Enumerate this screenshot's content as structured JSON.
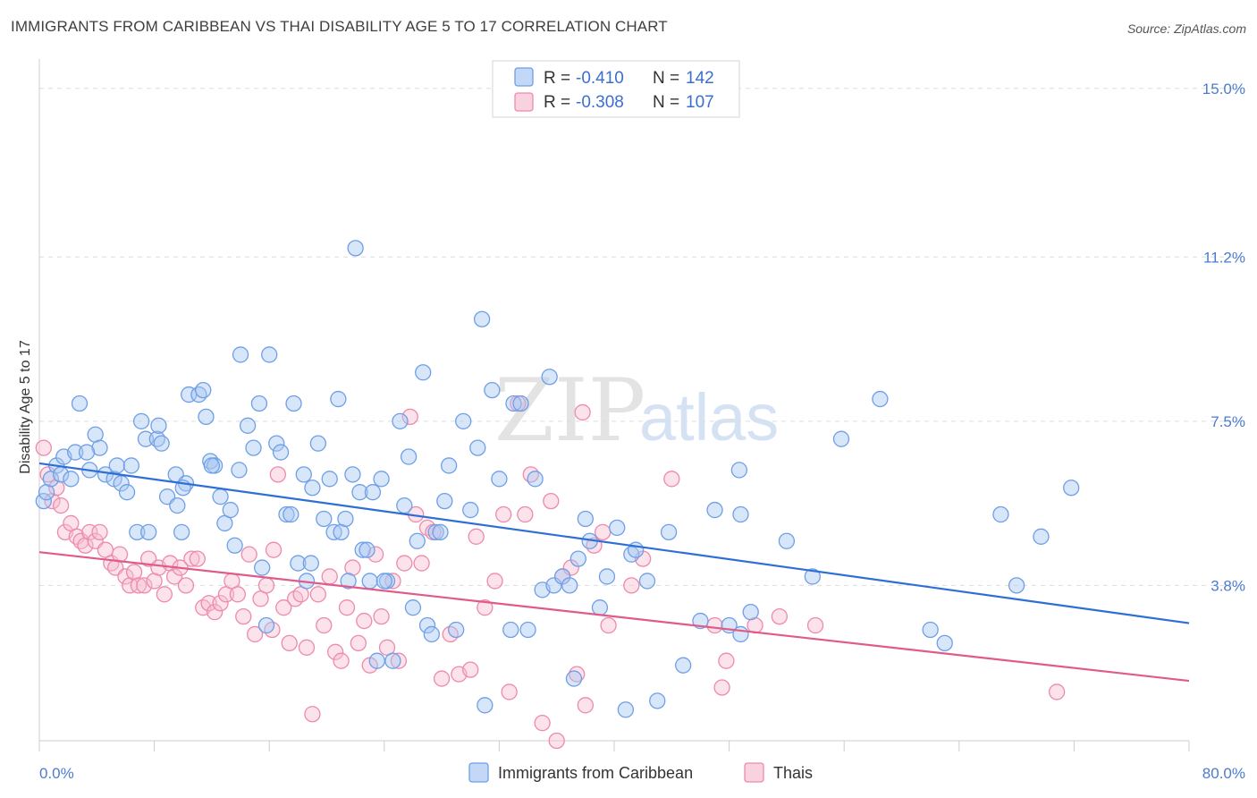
{
  "header": {
    "title": "IMMIGRANTS FROM CARIBBEAN VS THAI DISABILITY AGE 5 TO 17 CORRELATION CHART",
    "source": "Source: ZipAtlas.com"
  },
  "watermark": {
    "zip": "ZIP",
    "atlas": "atlas"
  },
  "colors": {
    "blue": "#6f9fe6",
    "blue_fill": "#a9c7f2",
    "blue_line": "#2e6fd6",
    "pink": "#ee8aaa",
    "pink_fill": "#f6bfd2",
    "pink_line": "#e05a8a",
    "grid": "#dddddd",
    "tick_text": "#4b7bd0"
  },
  "legend": {
    "rows": [
      {
        "r_label": "R =",
        "r_value": "-0.410",
        "n_label": "N =",
        "n_value": "142"
      },
      {
        "r_label": "R =",
        "r_value": "-0.308",
        "n_label": "N =",
        "n_value": "107"
      }
    ]
  },
  "chart_data": {
    "type": "scatter",
    "title": "IMMIGRANTS FROM CARIBBEAN VS THAI DISABILITY AGE 5 TO 17 CORRELATION CHART",
    "xlabel": "",
    "ylabel": "Disability Age 5 to 17",
    "xlim": [
      0,
      80
    ],
    "ylim": [
      0.3,
      15.5
    ],
    "x_tick_labels": [
      "0.0%",
      "80.0%"
    ],
    "y_ticks": [
      3.8,
      7.5,
      11.2,
      15.0
    ],
    "y_tick_labels": [
      "3.8%",
      "7.5%",
      "11.2%",
      "15.0%"
    ],
    "grid": true,
    "legend_position": "top-center",
    "series": [
      {
        "name": "Immigrants from Caribbean",
        "color": "#6f9fe6",
        "trend": {
          "x": [
            0,
            80
          ],
          "y": [
            6.55,
            2.95
          ]
        },
        "points": [
          [
            0.3,
            5.7
          ],
          [
            0.5,
            5.9
          ],
          [
            0.8,
            6.2
          ],
          [
            1.2,
            6.5
          ],
          [
            1.5,
            6.3
          ],
          [
            1.7,
            6.7
          ],
          [
            2.5,
            6.8
          ],
          [
            2.8,
            7.9
          ],
          [
            3.5,
            6.4
          ],
          [
            3.9,
            7.2
          ],
          [
            4.2,
            6.9
          ],
          [
            4.6,
            6.3
          ],
          [
            5.2,
            6.2
          ],
          [
            5.4,
            6.5
          ],
          [
            5.7,
            6.1
          ],
          [
            6.1,
            5.9
          ],
          [
            6.4,
            6.5
          ],
          [
            6.8,
            5.0
          ],
          [
            7.1,
            7.5
          ],
          [
            7.4,
            7.1
          ],
          [
            7.6,
            5.0
          ],
          [
            8.2,
            7.1
          ],
          [
            8.3,
            7.4
          ],
          [
            8.5,
            7.0
          ],
          [
            8.9,
            5.8
          ],
          [
            9.5,
            6.3
          ],
          [
            9.6,
            5.6
          ],
          [
            9.9,
            5.0
          ],
          [
            10.2,
            6.1
          ],
          [
            10.4,
            8.1
          ],
          [
            11.1,
            8.1
          ],
          [
            11.4,
            8.2
          ],
          [
            11.6,
            7.6
          ],
          [
            11.9,
            6.6
          ],
          [
            12.2,
            6.5
          ],
          [
            12.6,
            5.8
          ],
          [
            12.9,
            5.2
          ],
          [
            13.3,
            5.5
          ],
          [
            13.6,
            4.7
          ],
          [
            13.9,
            6.4
          ],
          [
            14.0,
            9.0
          ],
          [
            14.5,
            7.4
          ],
          [
            14.9,
            6.9
          ],
          [
            15.3,
            7.9
          ],
          [
            15.5,
            4.2
          ],
          [
            15.8,
            2.9
          ],
          [
            16.0,
            9.0
          ],
          [
            16.5,
            7.0
          ],
          [
            16.8,
            6.8
          ],
          [
            17.2,
            5.4
          ],
          [
            17.5,
            5.4
          ],
          [
            17.7,
            7.9
          ],
          [
            18.0,
            4.3
          ],
          [
            18.4,
            6.3
          ],
          [
            18.6,
            3.9
          ],
          [
            18.9,
            4.3
          ],
          [
            19.0,
            6.0
          ],
          [
            19.4,
            7.0
          ],
          [
            19.8,
            5.3
          ],
          [
            20.2,
            6.2
          ],
          [
            20.5,
            5.0
          ],
          [
            20.8,
            8.0
          ],
          [
            21.0,
            5.0
          ],
          [
            21.3,
            5.3
          ],
          [
            21.5,
            3.9
          ],
          [
            21.8,
            6.3
          ],
          [
            22.0,
            11.4
          ],
          [
            22.3,
            5.9
          ],
          [
            22.5,
            4.6
          ],
          [
            22.8,
            4.6
          ],
          [
            23.0,
            3.9
          ],
          [
            23.2,
            5.9
          ],
          [
            23.5,
            2.1
          ],
          [
            23.8,
            6.2
          ],
          [
            24.2,
            3.9
          ],
          [
            24.6,
            2.1
          ],
          [
            25.1,
            7.5
          ],
          [
            25.4,
            5.6
          ],
          [
            25.7,
            6.7
          ],
          [
            26.0,
            3.3
          ],
          [
            26.3,
            4.8
          ],
          [
            26.7,
            8.6
          ],
          [
            27.0,
            2.9
          ],
          [
            27.3,
            2.7
          ],
          [
            27.6,
            5.0
          ],
          [
            27.9,
            5.0
          ],
          [
            28.2,
            5.7
          ],
          [
            28.5,
            6.5
          ],
          [
            29.0,
            2.8
          ],
          [
            29.5,
            7.5
          ],
          [
            30.0,
            5.5
          ],
          [
            30.5,
            6.9
          ],
          [
            30.8,
            9.8
          ],
          [
            31.0,
            1.1
          ],
          [
            31.5,
            8.2
          ],
          [
            32.0,
            6.2
          ],
          [
            32.8,
            2.8
          ],
          [
            33.0,
            7.9
          ],
          [
            33.5,
            7.9
          ],
          [
            34.0,
            2.8
          ],
          [
            34.5,
            6.2
          ],
          [
            35.0,
            3.7
          ],
          [
            35.5,
            8.5
          ],
          [
            35.8,
            3.8
          ],
          [
            36.4,
            4.0
          ],
          [
            36.9,
            3.8
          ],
          [
            37.2,
            1.7
          ],
          [
            37.5,
            4.4
          ],
          [
            38.0,
            5.3
          ],
          [
            38.3,
            4.8
          ],
          [
            39.0,
            3.3
          ],
          [
            39.5,
            4.0
          ],
          [
            40.2,
            5.1
          ],
          [
            40.8,
            1.0
          ],
          [
            41.2,
            4.5
          ],
          [
            41.5,
            4.6
          ],
          [
            42.3,
            3.9
          ],
          [
            43.0,
            1.2
          ],
          [
            43.8,
            5.0
          ],
          [
            44.8,
            2.0
          ],
          [
            46.0,
            3.0
          ],
          [
            47.0,
            5.5
          ],
          [
            48.0,
            2.9
          ],
          [
            48.8,
            2.7
          ],
          [
            48.7,
            6.4
          ],
          [
            48.8,
            5.4
          ],
          [
            49.5,
            3.2
          ],
          [
            52.0,
            4.8
          ],
          [
            53.8,
            4.0
          ],
          [
            55.8,
            7.1
          ],
          [
            58.5,
            8.0
          ],
          [
            62.0,
            2.8
          ],
          [
            63.0,
            2.5
          ],
          [
            66.9,
            5.4
          ],
          [
            68.0,
            3.8
          ],
          [
            69.7,
            4.9
          ],
          [
            71.8,
            6.0
          ],
          [
            2.2,
            6.2
          ],
          [
            3.3,
            6.8
          ],
          [
            10.0,
            6.0
          ],
          [
            24.0,
            3.9
          ],
          [
            12.0,
            6.5
          ]
        ]
      },
      {
        "name": "Thais",
        "color": "#ee8aaa",
        "trend": {
          "x": [
            0,
            80
          ],
          "y": [
            4.55,
            1.65
          ]
        },
        "points": [
          [
            0.3,
            6.9
          ],
          [
            0.6,
            6.3
          ],
          [
            0.9,
            5.7
          ],
          [
            1.2,
            6.0
          ],
          [
            1.5,
            5.6
          ],
          [
            1.8,
            5.0
          ],
          [
            2.2,
            5.2
          ],
          [
            2.6,
            4.9
          ],
          [
            2.9,
            4.8
          ],
          [
            3.2,
            4.7
          ],
          [
            3.5,
            5.0
          ],
          [
            3.9,
            4.8
          ],
          [
            4.2,
            5.0
          ],
          [
            4.6,
            4.6
          ],
          [
            5.0,
            4.3
          ],
          [
            5.3,
            4.2
          ],
          [
            5.6,
            4.5
          ],
          [
            6.0,
            4.0
          ],
          [
            6.3,
            3.8
          ],
          [
            6.6,
            4.1
          ],
          [
            6.9,
            3.8
          ],
          [
            7.3,
            3.8
          ],
          [
            7.6,
            4.4
          ],
          [
            8.0,
            3.9
          ],
          [
            8.3,
            4.2
          ],
          [
            8.7,
            3.6
          ],
          [
            9.1,
            4.3
          ],
          [
            9.4,
            4.0
          ],
          [
            9.8,
            4.2
          ],
          [
            10.2,
            3.8
          ],
          [
            10.6,
            4.4
          ],
          [
            11.0,
            4.4
          ],
          [
            11.4,
            3.3
          ],
          [
            11.8,
            3.4
          ],
          [
            12.2,
            3.2
          ],
          [
            12.6,
            3.4
          ],
          [
            13.0,
            3.6
          ],
          [
            13.4,
            3.9
          ],
          [
            13.8,
            3.6
          ],
          [
            14.2,
            3.1
          ],
          [
            14.6,
            4.5
          ],
          [
            15.0,
            2.7
          ],
          [
            15.4,
            3.5
          ],
          [
            15.8,
            3.8
          ],
          [
            16.2,
            2.8
          ],
          [
            16.6,
            6.3
          ],
          [
            17.0,
            3.3
          ],
          [
            17.4,
            2.5
          ],
          [
            17.8,
            3.5
          ],
          [
            18.2,
            3.6
          ],
          [
            18.6,
            2.4
          ],
          [
            19.0,
            0.9
          ],
          [
            19.4,
            3.6
          ],
          [
            19.8,
            2.9
          ],
          [
            20.2,
            4.0
          ],
          [
            20.6,
            2.3
          ],
          [
            21.0,
            2.1
          ],
          [
            21.4,
            3.3
          ],
          [
            21.8,
            4.2
          ],
          [
            22.2,
            2.5
          ],
          [
            22.6,
            3.0
          ],
          [
            23.0,
            2.0
          ],
          [
            23.4,
            4.5
          ],
          [
            23.8,
            3.1
          ],
          [
            24.2,
            2.4
          ],
          [
            24.6,
            3.9
          ],
          [
            25.0,
            2.1
          ],
          [
            25.4,
            4.3
          ],
          [
            25.8,
            7.6
          ],
          [
            26.2,
            5.4
          ],
          [
            26.6,
            4.3
          ],
          [
            27.0,
            5.1
          ],
          [
            27.4,
            5.0
          ],
          [
            28.0,
            1.7
          ],
          [
            28.6,
            2.7
          ],
          [
            29.2,
            1.8
          ],
          [
            30.0,
            1.9
          ],
          [
            30.4,
            4.9
          ],
          [
            31.0,
            3.3
          ],
          [
            31.7,
            3.9
          ],
          [
            32.3,
            5.4
          ],
          [
            32.7,
            1.4
          ],
          [
            33.3,
            7.9
          ],
          [
            33.8,
            5.4
          ],
          [
            34.2,
            6.3
          ],
          [
            35.0,
            0.7
          ],
          [
            35.6,
            5.7
          ],
          [
            36.4,
            4.0
          ],
          [
            37.0,
            4.2
          ],
          [
            37.4,
            1.8
          ],
          [
            37.8,
            7.7
          ],
          [
            38.0,
            1.1
          ],
          [
            38.6,
            4.7
          ],
          [
            39.6,
            2.9
          ],
          [
            39.2,
            5.0
          ],
          [
            41.2,
            3.8
          ],
          [
            42.0,
            4.4
          ],
          [
            44.0,
            6.2
          ],
          [
            47.0,
            2.9
          ],
          [
            49.8,
            2.9
          ],
          [
            51.5,
            3.1
          ],
          [
            54.0,
            2.9
          ],
          [
            47.5,
            1.5
          ],
          [
            47.8,
            2.1
          ],
          [
            70.8,
            1.4
          ],
          [
            16.3,
            4.6
          ],
          [
            36.0,
            0.3
          ]
        ]
      }
    ]
  }
}
